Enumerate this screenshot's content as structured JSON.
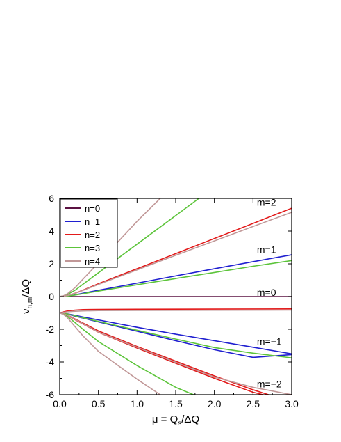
{
  "chart_data": {
    "type": "line",
    "xlabel": {
      "main": "μ = Q",
      "sub": "s",
      "tail": "/ΔQ"
    },
    "ylabel": {
      "main": "ν",
      "sub": "n,m",
      "tail": "/ΔQ"
    },
    "xlim": [
      0,
      3
    ],
    "ylim": [
      -6,
      6
    ],
    "xticks": [
      "0.0",
      "0.5",
      "1.0",
      "1.5",
      "2.0",
      "2.5",
      "3.0"
    ],
    "yticks": [
      "-6",
      "-4",
      "-2",
      "0",
      "2",
      "4",
      "6"
    ],
    "grid": false,
    "legend_position": "top-left",
    "legend": [
      {
        "name": "n=0",
        "color": "#5b1242"
      },
      {
        "name": "n=1",
        "color": "#1f1fd0"
      },
      {
        "name": "n=2",
        "color": "#e31a1a"
      },
      {
        "name": "n=3",
        "color": "#5cc43a"
      },
      {
        "name": "n=4",
        "color": "#c19898"
      }
    ],
    "annotations": [
      {
        "text": "m=2",
        "x": 2.55,
        "y": 5.55
      },
      {
        "text": "m=1",
        "x": 2.55,
        "y": 2.65
      },
      {
        "text": "m=0",
        "x": 2.55,
        "y": 0.05
      },
      {
        "text": "m=−1",
        "x": 2.55,
        "y": -2.95
      },
      {
        "text": "m=−2",
        "x": 2.55,
        "y": -5.55
      }
    ],
    "series": [
      {
        "color": "#5b1242",
        "x": [
          0,
          3
        ],
        "y": [
          0,
          0
        ]
      },
      {
        "color": "#1f1fd0",
        "x": [
          0,
          0.05,
          0.1,
          0.2,
          0.3,
          0.5,
          1,
          1.5,
          2,
          2.5,
          3
        ],
        "y": [
          0,
          0.01,
          0.03,
          0.1,
          0.2,
          0.38,
          0.82,
          1.26,
          1.7,
          2.13,
          2.55
        ]
      },
      {
        "color": "#e31a1a",
        "x": [
          0,
          0.05,
          0.1,
          0.2,
          0.3,
          0.5,
          1,
          1.5,
          2,
          2.5,
          3
        ],
        "y": [
          0,
          0.02,
          0.06,
          0.2,
          0.39,
          0.78,
          1.7,
          2.62,
          3.55,
          4.47,
          5.4
        ]
      },
      {
        "color": "#5cc43a",
        "x": [
          0,
          0.05,
          0.1,
          0.2,
          0.3,
          0.5,
          1,
          1.5,
          2,
          2.5,
          3
        ],
        "y": [
          0,
          0.01,
          0.03,
          0.09,
          0.17,
          0.33,
          0.72,
          1.1,
          1.47,
          1.85,
          2.2
        ]
      },
      {
        "color": "#5cc43a",
        "x": [
          0,
          0.05,
          0.1,
          0.2,
          0.3,
          0.5,
          1,
          1.5,
          1.8
        ],
        "y": [
          0,
          0.04,
          0.12,
          0.39,
          0.75,
          1.45,
          3.2,
          4.95,
          6
        ]
      },
      {
        "color": "#c19898",
        "x": [
          0,
          0.05,
          0.1,
          0.2,
          0.3,
          0.5,
          1,
          1.5,
          2,
          2.5,
          3
        ],
        "y": [
          0,
          0.02,
          0.06,
          0.19,
          0.37,
          0.74,
          1.63,
          2.52,
          3.4,
          4.28,
          5.15
        ]
      },
      {
        "color": "#c19898",
        "x": [
          0,
          0.05,
          0.1,
          0.2,
          0.3,
          0.5,
          1,
          1.3
        ],
        "y": [
          0,
          0.05,
          0.17,
          0.55,
          1.06,
          2.05,
          4.6,
          6
        ]
      },
      {
        "color": "#e31a1a",
        "x": [
          0,
          0.1,
          0.2,
          0.3,
          0.5,
          1,
          2,
          3
        ],
        "y": [
          -1,
          -0.88,
          -0.83,
          -0.8,
          -0.79,
          -0.78,
          -0.77,
          -0.76
        ]
      },
      {
        "color": "#c19898",
        "x": [
          0,
          0.1,
          0.2,
          0.3,
          0.5,
          1,
          2,
          3
        ],
        "y": [
          -1,
          -0.93,
          -0.9,
          -0.88,
          -0.86,
          -0.85,
          -0.84,
          -0.83
        ]
      },
      {
        "color": "#1f1fd0",
        "x": [
          0,
          0.05,
          0.1,
          0.2,
          0.3,
          0.5,
          1,
          1.5,
          2,
          2.5,
          3
        ],
        "y": [
          -1,
          -1.03,
          -1.08,
          -1.2,
          -1.32,
          -1.55,
          -2.12,
          -2.7,
          -3.25,
          -3.72,
          -3.55
        ]
      },
      {
        "color": "#1f1fd0",
        "x": [
          0,
          0.05,
          0.1,
          0.2,
          0.3,
          0.5,
          1,
          1.5,
          2,
          2.5,
          3
        ],
        "y": [
          -1,
          -1.02,
          -1.06,
          -1.15,
          -1.25,
          -1.43,
          -1.88,
          -2.3,
          -2.7,
          -3.1,
          -3.5
        ]
      },
      {
        "color": "#5cc43a",
        "x": [
          0,
          0.05,
          0.1,
          0.2,
          0.3,
          0.5,
          1,
          1.5,
          2,
          2.5,
          3
        ],
        "y": [
          -1,
          -1.02,
          -1.07,
          -1.18,
          -1.3,
          -1.52,
          -2.06,
          -2.6,
          -3.12,
          -3.46,
          -3.75
        ]
      },
      {
        "color": "#e31a1a",
        "x": [
          0,
          0.05,
          0.1,
          0.2,
          0.3,
          0.5,
          1,
          1.5,
          2,
          2.5,
          2.7
        ],
        "y": [
          -1,
          -1.05,
          -1.14,
          -1.38,
          -1.62,
          -2.1,
          -3.05,
          -3.95,
          -4.85,
          -5.7,
          -6
        ]
      },
      {
        "color": "#e31a1a",
        "x": [
          0,
          0.05,
          0.1,
          0.2,
          0.3,
          0.5,
          1,
          1.5,
          2,
          2.5,
          2.63
        ],
        "y": [
          -1,
          -1.06,
          -1.16,
          -1.42,
          -1.68,
          -2.18,
          -3.15,
          -4.08,
          -5,
          -5.85,
          -6
        ]
      },
      {
        "color": "#c19898",
        "x": [
          0,
          0.05,
          0.1,
          0.2,
          0.3,
          0.5,
          1,
          1.5,
          2,
          2.5,
          3
        ],
        "y": [
          -1,
          -1.05,
          -1.15,
          -1.4,
          -1.66,
          -2.17,
          -3.1,
          -4.02,
          -4.92,
          -5.55,
          -6
        ]
      },
      {
        "color": "#5cc43a",
        "x": [
          0,
          0.05,
          0.1,
          0.2,
          0.3,
          0.5,
          1,
          1.5,
          1.73
        ],
        "y": [
          -1,
          -1.08,
          -1.22,
          -1.6,
          -2,
          -2.75,
          -4.22,
          -5.55,
          -6
        ]
      },
      {
        "color": "#c19898",
        "x": [
          0,
          0.05,
          0.1,
          0.2,
          0.3,
          0.5,
          1,
          1.3
        ],
        "y": [
          -1,
          -1.1,
          -1.3,
          -1.85,
          -2.4,
          -3.35,
          -5.05,
          -6
        ]
      }
    ]
  }
}
